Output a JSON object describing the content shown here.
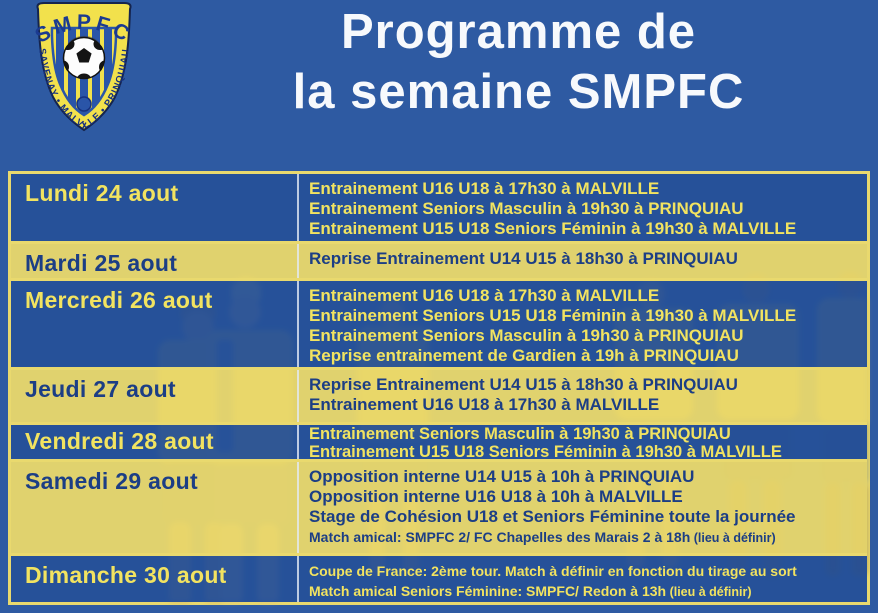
{
  "title": {
    "line1": "Programme de",
    "line2": "la semaine SMPFC"
  },
  "logo": {
    "initials": "SMPFC",
    "towns": "SAVENAY • MALVILLE • PRINQUIAU"
  },
  "colors": {
    "background_blue": "#2e5aa2",
    "border_yellow": "#e9d96e",
    "text_yellow": "#f2e360",
    "text_navy": "#1c3e85",
    "title_white": "#f7f9fc",
    "row_yellow_solid": "#f9e266",
    "row_blue_solid": "#265098"
  },
  "schedule": [
    {
      "day": "Lundi 24 aout",
      "theme": "blue",
      "events": [
        {
          "text": "Entrainement U16 U18 à 17h30 à MALVILLE"
        },
        {
          "text": "Entrainement Seniors Masculin à 19h30 à PRINQUIAU"
        },
        {
          "text": "Entrainement U15 U18 Seniors Féminin à 19h30 à MALVILLE"
        }
      ]
    },
    {
      "day": "Mardi 25 aout",
      "theme": "yellow",
      "events": [
        {
          "text": "Reprise Entrainement U14 U15 à 18h30 à PRINQUIAU"
        }
      ]
    },
    {
      "day": "Mercredi 26 aout",
      "theme": "blue",
      "events": [
        {
          "text": "Entrainement U16 U18 à 17h30 à MALVILLE"
        },
        {
          "text": "Entrainement Seniors U15 U18 Féminin à 19h30 à MALVILLE"
        },
        {
          "text": "Entrainement Seniors Masculin à 19h30 à PRINQUIAU"
        },
        {
          "text": "Reprise entrainement de Gardien à 19h à PRINQUIAU"
        }
      ]
    },
    {
      "day": "Jeudi 27 aout",
      "theme": "yellow",
      "events": [
        {
          "text": "Reprise Entrainement U14 U15 à 18h30 à PRINQUIAU"
        },
        {
          "text": "Entrainement U16 U18 à 17h30 à MALVILLE"
        }
      ]
    },
    {
      "day": "Vendredi 28 aout",
      "theme": "blue",
      "events": [
        {
          "text": "Entrainement Seniors Masculin à 19h30 à PRINQUIAU"
        },
        {
          "text": "Entrainement U15 U18 Seniors Féminin à 19h30 à MALVILLE"
        }
      ]
    },
    {
      "day": "Samedi 29 aout",
      "theme": "yellow",
      "events": [
        {
          "text": "Opposition interne U14 U15 à 10h à PRINQUIAU"
        },
        {
          "text": "Opposition interne U16 U18 à 10h à MALVILLE"
        },
        {
          "text": "Stage de Cohésion U18 et Seniors Féminine toute la journée"
        },
        {
          "text": "Match amical: SMPFC 2/ FC Chapelles des Marais 2 à 18h",
          "small": true,
          "note": "(lieu à définir)"
        }
      ]
    },
    {
      "day": "Dimanche 30 aout",
      "theme": "blue",
      "events": [
        {
          "text": "Coupe de France: 2ème tour. Match à définir en fonction du tirage au sort",
          "small": true
        },
        {
          "text": "Match amical Seniors Féminine: SMPFC/ Redon à 13h",
          "small": true,
          "note": "(lieu à définir)"
        }
      ]
    }
  ]
}
